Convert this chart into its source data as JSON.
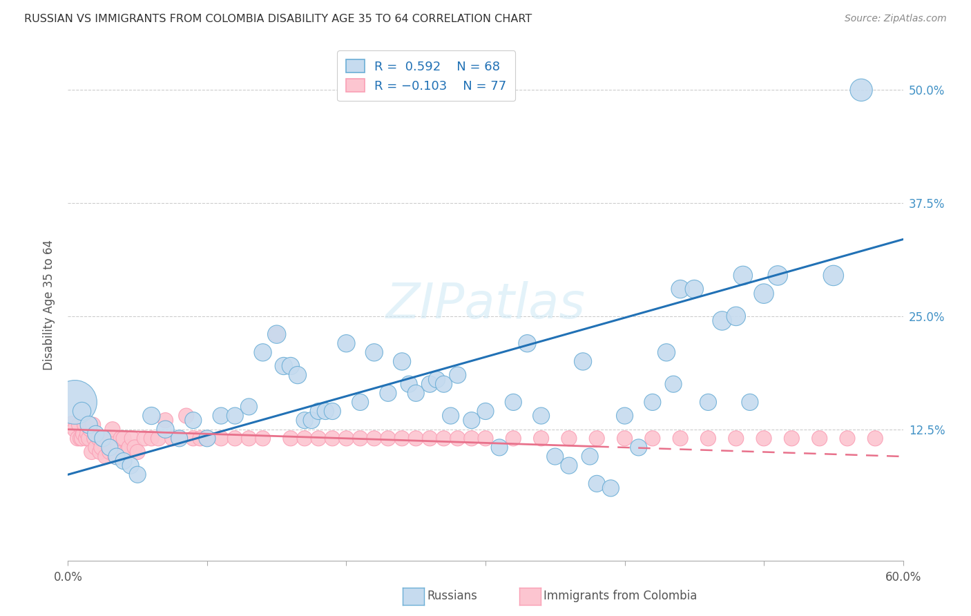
{
  "title": "RUSSIAN VS IMMIGRANTS FROM COLOMBIA DISABILITY AGE 35 TO 64 CORRELATION CHART",
  "source": "Source: ZipAtlas.com",
  "ylabel": "Disability Age 35 to 64",
  "ytick_labels": [
    "12.5%",
    "25.0%",
    "37.5%",
    "50.0%"
  ],
  "ytick_values": [
    0.125,
    0.25,
    0.375,
    0.5
  ],
  "xlim": [
    0.0,
    0.6
  ],
  "ylim": [
    -0.02,
    0.545
  ],
  "r_russian": 0.592,
  "n_russian": 68,
  "r_colombia": -0.103,
  "n_colombia": 77,
  "blue_fill": "#c6dbef",
  "blue_edge": "#6baed6",
  "pink_fill": "#fcc5d0",
  "pink_edge": "#fa9fb5",
  "trend_blue": "#2171b5",
  "trend_pink": "#e8718b",
  "watermark": "ZIPatlas",
  "russians_x": [
    0.005,
    0.01,
    0.015,
    0.02,
    0.025,
    0.03,
    0.035,
    0.04,
    0.045,
    0.05,
    0.06,
    0.07,
    0.08,
    0.09,
    0.1,
    0.11,
    0.12,
    0.13,
    0.14,
    0.15,
    0.155,
    0.16,
    0.165,
    0.17,
    0.175,
    0.18,
    0.185,
    0.19,
    0.2,
    0.21,
    0.22,
    0.23,
    0.24,
    0.245,
    0.25,
    0.26,
    0.265,
    0.27,
    0.275,
    0.28,
    0.29,
    0.3,
    0.31,
    0.32,
    0.33,
    0.34,
    0.35,
    0.36,
    0.37,
    0.375,
    0.38,
    0.39,
    0.4,
    0.41,
    0.42,
    0.43,
    0.435,
    0.44,
    0.45,
    0.46,
    0.47,
    0.48,
    0.485,
    0.49,
    0.5,
    0.51,
    0.55,
    0.57
  ],
  "russians_y": [
    0.155,
    0.145,
    0.13,
    0.12,
    0.115,
    0.105,
    0.095,
    0.09,
    0.085,
    0.075,
    0.14,
    0.125,
    0.115,
    0.135,
    0.115,
    0.14,
    0.14,
    0.15,
    0.21,
    0.23,
    0.195,
    0.195,
    0.185,
    0.135,
    0.135,
    0.145,
    0.145,
    0.145,
    0.22,
    0.155,
    0.21,
    0.165,
    0.2,
    0.175,
    0.165,
    0.175,
    0.18,
    0.175,
    0.14,
    0.185,
    0.135,
    0.145,
    0.105,
    0.155,
    0.22,
    0.14,
    0.095,
    0.085,
    0.2,
    0.095,
    0.065,
    0.06,
    0.14,
    0.105,
    0.155,
    0.21,
    0.175,
    0.28,
    0.28,
    0.155,
    0.245,
    0.25,
    0.295,
    0.155,
    0.275,
    0.295,
    0.295,
    0.5
  ],
  "russians_size": [
    350,
    60,
    55,
    50,
    50,
    50,
    50,
    50,
    50,
    50,
    55,
    55,
    50,
    50,
    50,
    50,
    50,
    50,
    55,
    60,
    55,
    55,
    55,
    50,
    50,
    50,
    50,
    50,
    55,
    50,
    55,
    50,
    55,
    50,
    50,
    50,
    50,
    50,
    50,
    50,
    50,
    50,
    50,
    50,
    55,
    50,
    50,
    50,
    55,
    50,
    50,
    50,
    50,
    50,
    50,
    55,
    50,
    60,
    60,
    50,
    65,
    65,
    65,
    50,
    70,
    70,
    75,
    90
  ],
  "colombia_x": [
    0.003,
    0.005,
    0.007,
    0.008,
    0.009,
    0.01,
    0.011,
    0.012,
    0.013,
    0.014,
    0.015,
    0.016,
    0.017,
    0.018,
    0.019,
    0.02,
    0.022,
    0.023,
    0.024,
    0.025,
    0.027,
    0.028,
    0.03,
    0.032,
    0.034,
    0.036,
    0.038,
    0.04,
    0.042,
    0.044,
    0.046,
    0.048,
    0.05,
    0.055,
    0.06,
    0.065,
    0.07,
    0.075,
    0.08,
    0.085,
    0.09,
    0.095,
    0.1,
    0.11,
    0.12,
    0.13,
    0.14,
    0.15,
    0.16,
    0.17,
    0.18,
    0.19,
    0.2,
    0.21,
    0.22,
    0.23,
    0.24,
    0.25,
    0.26,
    0.27,
    0.28,
    0.29,
    0.3,
    0.32,
    0.34,
    0.36,
    0.38,
    0.4,
    0.42,
    0.44,
    0.46,
    0.48,
    0.5,
    0.52,
    0.54,
    0.56,
    0.58
  ],
  "colombia_y": [
    0.13,
    0.125,
    0.115,
    0.13,
    0.115,
    0.115,
    0.12,
    0.13,
    0.115,
    0.12,
    0.115,
    0.125,
    0.1,
    0.13,
    0.115,
    0.105,
    0.115,
    0.1,
    0.105,
    0.115,
    0.095,
    0.115,
    0.1,
    0.125,
    0.095,
    0.105,
    0.115,
    0.115,
    0.1,
    0.105,
    0.115,
    0.105,
    0.1,
    0.115,
    0.115,
    0.115,
    0.135,
    0.115,
    0.115,
    0.14,
    0.115,
    0.115,
    0.115,
    0.115,
    0.115,
    0.115,
    0.115,
    0.23,
    0.115,
    0.115,
    0.115,
    0.115,
    0.115,
    0.115,
    0.115,
    0.115,
    0.115,
    0.115,
    0.115,
    0.115,
    0.115,
    0.115,
    0.115,
    0.115,
    0.115,
    0.115,
    0.115,
    0.115,
    0.115,
    0.115,
    0.115,
    0.115,
    0.115,
    0.115,
    0.115,
    0.115,
    0.115
  ],
  "colombia_size": [
    55,
    45,
    42,
    42,
    42,
    42,
    42,
    42,
    42,
    42,
    42,
    42,
    42,
    42,
    42,
    42,
    42,
    42,
    42,
    42,
    42,
    42,
    42,
    42,
    42,
    42,
    42,
    42,
    42,
    42,
    42,
    42,
    42,
    42,
    42,
    42,
    42,
    42,
    42,
    42,
    42,
    42,
    42,
    42,
    42,
    42,
    42,
    42,
    42,
    42,
    42,
    42,
    42,
    42,
    42,
    42,
    42,
    42,
    42,
    42,
    42,
    42,
    42,
    42,
    42,
    42,
    42,
    42,
    42,
    42,
    42,
    42,
    42,
    42,
    42,
    42,
    42
  ],
  "trend_blue_start_x": 0.0,
  "trend_blue_start_y": 0.075,
  "trend_blue_end_x": 0.6,
  "trend_blue_end_y": 0.335,
  "trend_pink_solid_start_x": 0.0,
  "trend_pink_solid_start_y": 0.125,
  "trend_pink_end_x": 0.6,
  "trend_pink_end_y": 0.095,
  "trend_pink_dash_start_x": 0.38
}
